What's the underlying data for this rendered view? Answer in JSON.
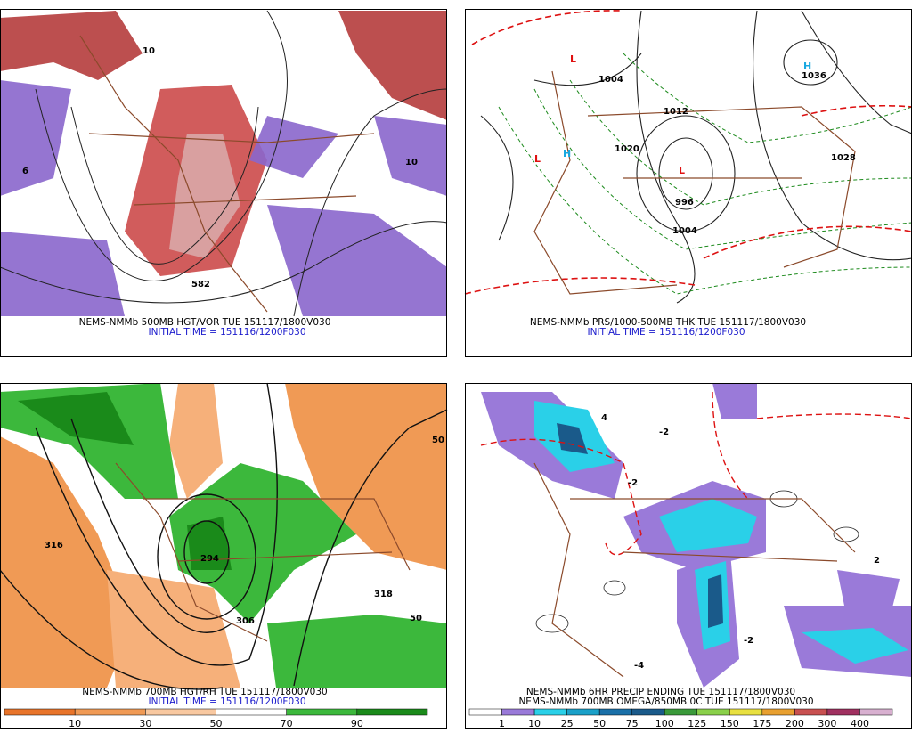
{
  "panels": [
    {
      "caption": [
        "NEMS-NMMb 500MB HGT/VOR TUE 151117/1800V030",
        "INITIAL TIME = 151116/1200F030"
      ],
      "map_labels": [
        "582",
        "10",
        "10",
        "6"
      ]
    },
    {
      "caption": [
        "NEMS-NMMb PRS/1000-500MB THK TUE 151117/1800V030",
        "INITIAL TIME = 151116/1200F030"
      ],
      "map_labels": [
        "L",
        "L",
        "L",
        "H",
        "H",
        "1004",
        "1012",
        "1020",
        "1028",
        "996",
        "1036",
        "1004"
      ]
    },
    {
      "caption": [
        "NEMS-NMMb 700MB HGT/RH TUE 151117/1800V030",
        "INITIAL TIME = 151116/1200F030"
      ],
      "map_labels": [
        "316",
        "318",
        "306",
        "294",
        "50",
        "50"
      ],
      "colorbar": [
        "10",
        "30",
        "50",
        "70",
        "90"
      ]
    },
    {
      "caption": [
        "NEMS-NMMb 6HR PRECIP ENDING TUE 151117/1800V030",
        "NEMS-NMMb 700MB OMEGA/850MB 0C TUE 151117/1800V030"
      ],
      "map_labels": [
        "-2",
        "4",
        "-2",
        "2",
        "-4",
        "-2"
      ],
      "colorbar": [
        "1",
        "10",
        "25",
        "50",
        "75",
        "100",
        "125",
        "150",
        "175",
        "200",
        "300",
        "400"
      ]
    }
  ]
}
